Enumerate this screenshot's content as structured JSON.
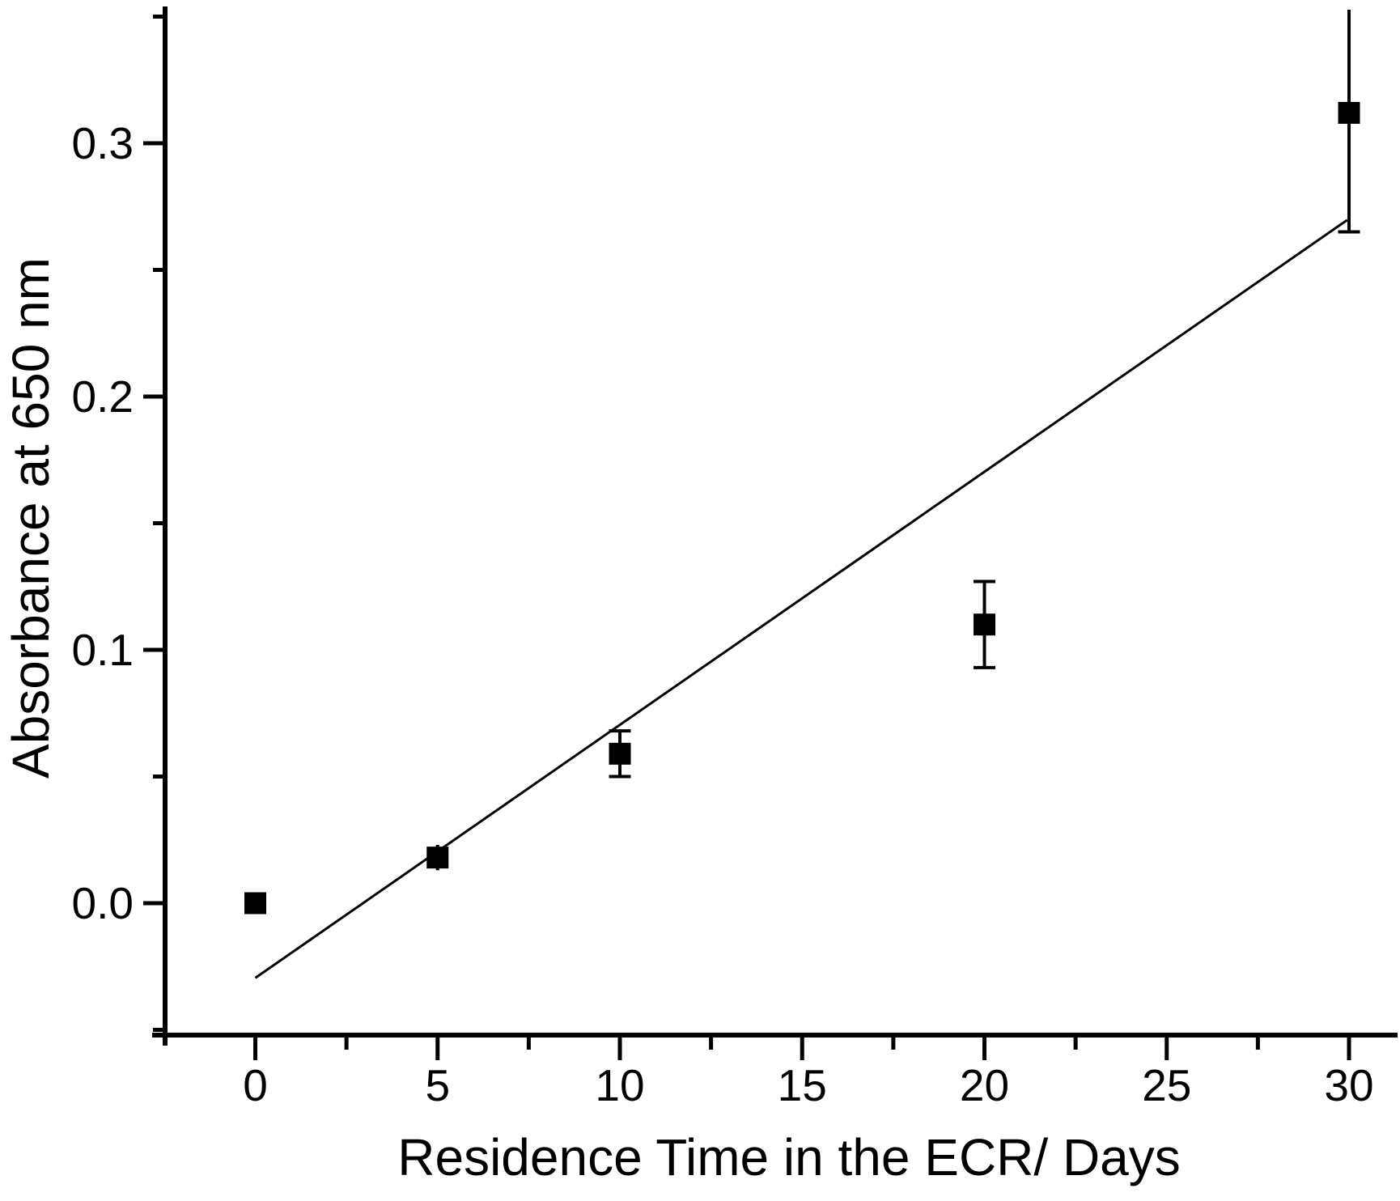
{
  "chart_data": {
    "type": "scatter",
    "title": "",
    "xlabel": "Residence Time in the ECR/ Days",
    "ylabel": "Absorbance at 650 nm",
    "x_ticks": [
      0,
      5,
      10,
      15,
      20,
      25,
      30
    ],
    "x_tick_labels": [
      "0",
      "5",
      "10",
      "15",
      "20",
      "25",
      "30"
    ],
    "x_minor_ticks": [
      2.5,
      7.5,
      12.5,
      17.5,
      22.5,
      27.5
    ],
    "y_ticks": [
      0.0,
      0.1,
      0.2,
      0.3
    ],
    "y_tick_labels": [
      "0.0",
      "0.1",
      "0.2",
      "0.3"
    ],
    "y_minor_ticks": [
      -0.05,
      0.05,
      0.15,
      0.25,
      0.35
    ],
    "xlim": [
      -2.8,
      31.3
    ],
    "ylim": [
      -0.056,
      0.354
    ],
    "grid": false,
    "legend": null,
    "marker": "filled-square",
    "colors": {
      "foreground": "#000000",
      "background": "#ffffff"
    },
    "series": [
      {
        "name": "absorbance-vs-residence-time",
        "points": [
          {
            "x": 0,
            "y": 0.0,
            "yerr": null,
            "caps": false,
            "top_clipped": false
          },
          {
            "x": 5,
            "y": 0.018,
            "yerr": 0.005,
            "caps": false,
            "top_clipped": false
          },
          {
            "x": 10,
            "y": 0.059,
            "yerr": 0.009,
            "caps": true,
            "top_clipped": false
          },
          {
            "x": 20,
            "y": 0.11,
            "yerr": 0.017,
            "caps": true,
            "top_clipped": false
          },
          {
            "x": 30,
            "y": 0.312,
            "yerr": 0.047,
            "caps": true,
            "top_clipped": true
          }
        ]
      }
    ],
    "fit_line": {
      "x1": 0.0,
      "y1": -0.0295,
      "x2": 29.95,
      "y2": 0.2697,
      "slope_per_day": 0.01,
      "intercept": -0.0295
    }
  }
}
